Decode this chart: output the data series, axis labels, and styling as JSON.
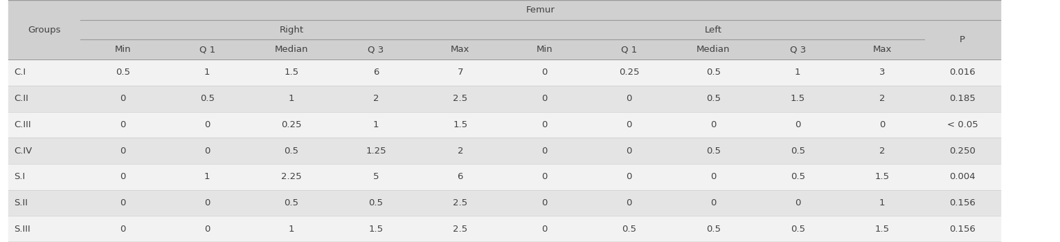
{
  "title": "Femur",
  "groups": [
    "C.I",
    "C.II",
    "C.III",
    "C.IV",
    "S.I",
    "S.II",
    "S.III"
  ],
  "right_cols": [
    "Min",
    "Q 1",
    "Median",
    "Q 3",
    "Max"
  ],
  "left_cols": [
    "Min",
    "Q 1",
    "Median",
    "Q 3",
    "Max"
  ],
  "p_col": "P",
  "right_data": [
    [
      "0.5",
      "1",
      "1.5",
      "6",
      "7"
    ],
    [
      "0",
      "0.5",
      "1",
      "2",
      "2.5"
    ],
    [
      "0",
      "0",
      "0.25",
      "1",
      "1.5"
    ],
    [
      "0",
      "0",
      "0.5",
      "1.25",
      "2"
    ],
    [
      "0",
      "1",
      "2.25",
      "5",
      "6"
    ],
    [
      "0",
      "0",
      "0.5",
      "0.5",
      "2.5"
    ],
    [
      "0",
      "0",
      "1",
      "1.5",
      "2.5"
    ]
  ],
  "left_data": [
    [
      "0",
      "0.25",
      "0.5",
      "1",
      "3"
    ],
    [
      "0",
      "0",
      "0.5",
      "1.5",
      "2"
    ],
    [
      "0",
      "0",
      "0",
      "0",
      "0"
    ],
    [
      "0",
      "0",
      "0.5",
      "0.5",
      "2"
    ],
    [
      "0",
      "0",
      "0",
      "0.5",
      "1.5"
    ],
    [
      "0",
      "0",
      "0",
      "0",
      "1"
    ],
    [
      "0",
      "0.5",
      "0.5",
      "0.5",
      "1.5"
    ]
  ],
  "p_data": [
    "0.016",
    "0.185",
    "< 0.05",
    "0.250",
    "0.004",
    "0.156",
    "0.156"
  ],
  "header_bg": "#d0d0d0",
  "row_bg_odd": "#f2f2f2",
  "row_bg_even": "#e4e4e4",
  "text_color": "#404040",
  "font_size": 9.5,
  "header_font_size": 9.5
}
